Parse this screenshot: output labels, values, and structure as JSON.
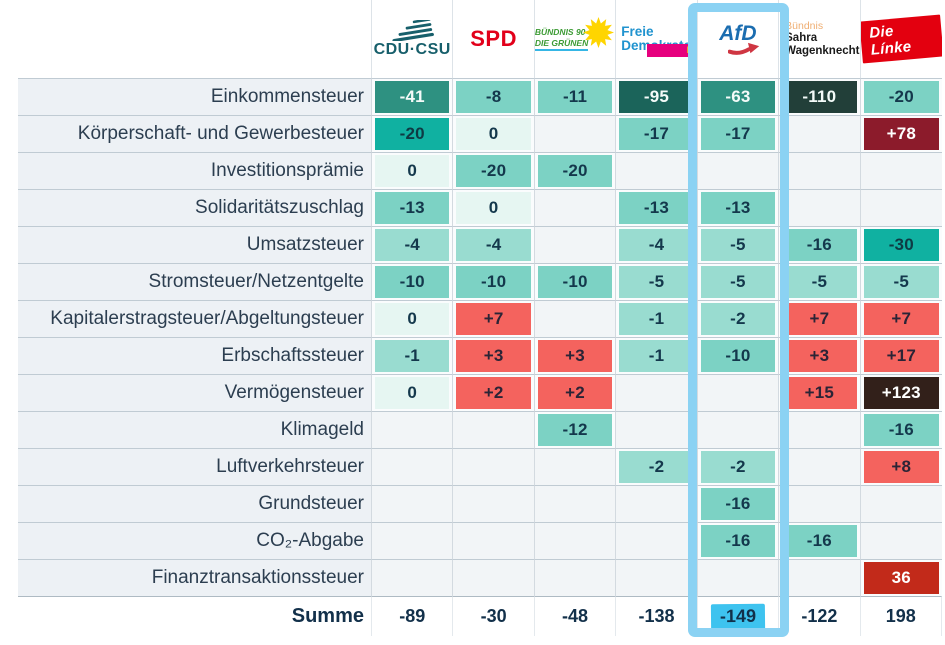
{
  "chart_data": {
    "type": "heatmap",
    "title": "",
    "columns": [
      "CDU·CSU",
      "SPD",
      "BÜNDNIS 90 DIE GRÜNEN",
      "Freie Demokraten (FDP)",
      "AfD",
      "Bündnis Sahra Wagenknecht",
      "Die Línke"
    ],
    "rows": [
      {
        "label": "Einkommensteuer",
        "values": [
          "-41",
          "-8",
          "-11",
          "-95",
          "-63",
          "-110",
          "-20"
        ],
        "shades": [
          "s4",
          "s2",
          "s2",
          "s5",
          "s4",
          "s6",
          "s2"
        ]
      },
      {
        "label": "Körperschaft- und Gewerbesteuer",
        "values": [
          "-20",
          "0",
          "",
          "-17",
          "-17",
          "",
          "+78"
        ],
        "shades": [
          "s3",
          "s0",
          "",
          "s2",
          "s2",
          "",
          "r2"
        ]
      },
      {
        "label": "Investitionsprämie",
        "values": [
          "0",
          "-20",
          "-20",
          "",
          "",
          "",
          ""
        ],
        "shades": [
          "s0",
          "s2",
          "s2",
          "",
          "",
          "",
          ""
        ]
      },
      {
        "label": "Solidaritätszuschlag",
        "values": [
          "-13",
          "0",
          "",
          "-13",
          "-13",
          "",
          ""
        ],
        "shades": [
          "s2",
          "s0",
          "",
          "s2",
          "s2",
          "",
          ""
        ]
      },
      {
        "label": "Umsatzsteuer",
        "values": [
          "-4",
          "-4",
          "",
          "-4",
          "-5",
          "-16",
          "-30"
        ],
        "shades": [
          "s1",
          "s1",
          "",
          "s1",
          "s1",
          "s2",
          "s3"
        ]
      },
      {
        "label": "Stromsteuer/Netzentgelte",
        "values": [
          "-10",
          "-10",
          "-10",
          "-5",
          "-5",
          "-5",
          "-5"
        ],
        "shades": [
          "s2",
          "s2",
          "s2",
          "s1",
          "s1",
          "s1",
          "s1"
        ]
      },
      {
        "label": "Kapitalerstragsteuer/Abgeltungsteuer",
        "values": [
          "0",
          "+7",
          "",
          "-1",
          "-2",
          "+7",
          "+7"
        ],
        "shades": [
          "s0",
          "r1",
          "",
          "s1",
          "s1",
          "r1",
          "r1"
        ]
      },
      {
        "label": "Erbschaftssteuer",
        "values": [
          "-1",
          "+3",
          "+3",
          "-1",
          "-10",
          "+3",
          "+17"
        ],
        "shades": [
          "s1",
          "r1",
          "r1",
          "s1",
          "s2",
          "r1",
          "r1"
        ]
      },
      {
        "label": "Vermögensteuer",
        "values": [
          "0",
          "+2",
          "+2",
          "",
          "",
          "+15",
          "+123"
        ],
        "shades": [
          "s0",
          "r1",
          "r1",
          "",
          "",
          "r1",
          "r4"
        ]
      },
      {
        "label": "Klimageld",
        "values": [
          "",
          "",
          "-12",
          "",
          "",
          "",
          "-16"
        ],
        "shades": [
          "",
          "",
          "s2",
          "",
          "",
          "",
          "s2"
        ]
      },
      {
        "label": "Luftverkehrsteuer",
        "values": [
          "",
          "",
          "",
          "-2",
          "-2",
          "",
          "+8"
        ],
        "shades": [
          "",
          "",
          "",
          "s1",
          "s1",
          "",
          "r1"
        ]
      },
      {
        "label": "Grundsteuer",
        "values": [
          "",
          "",
          "",
          "",
          "-16",
          "",
          ""
        ],
        "shades": [
          "",
          "",
          "",
          "",
          "s2",
          "",
          ""
        ]
      },
      {
        "label": "CO₂-Abgabe",
        "values": [
          "",
          "",
          "",
          "",
          "-16",
          "-16",
          ""
        ],
        "shades": [
          "",
          "",
          "",
          "",
          "s2",
          "s2",
          ""
        ]
      },
      {
        "label": "Finanztransaktionssteuer",
        "values": [
          "",
          "",
          "",
          "",
          "",
          "",
          "36"
        ],
        "shades": [
          "",
          "",
          "",
          "",
          "",
          "",
          "r3"
        ]
      }
    ],
    "sum_row": {
      "label": "Summe",
      "values": [
        "-89",
        "-30",
        "-48",
        "-138",
        "-149",
        "-122",
        "198"
      ]
    },
    "highlight": {
      "party": "AfD",
      "column_index": 4,
      "highlighted_total": "-149",
      "box_color": "#8bd2f3",
      "marker_color": "#3ec3ef",
      "marker_text_color": "#12304a"
    }
  },
  "palette": {
    "s0": {
      "bg": "#e6f6f2",
      "fg": "#14384c"
    },
    "s1": {
      "bg": "#99dcd0",
      "fg": "#14384c"
    },
    "s2": {
      "bg": "#7cd2c4",
      "fg": "#14384c"
    },
    "s3": {
      "bg": "#10b1a1",
      "fg": "#0e3b44"
    },
    "s4": {
      "bg": "#2e9181",
      "fg": "#f4fbf9"
    },
    "s5": {
      "bg": "#1b645a",
      "fg": "#f4fbf9"
    },
    "s6": {
      "bg": "#223f39",
      "fg": "#f4fbf9"
    },
    "r1": {
      "bg": "#f4635e",
      "fg": "#2b2436"
    },
    "r2": {
      "bg": "#8c1b2b",
      "fg": "#ffffff"
    },
    "r3": {
      "bg": "#c22a1a",
      "fg": "#ffffff"
    },
    "r4": {
      "bg": "#32201a",
      "fg": "#ffffff"
    }
  },
  "parties": {
    "cdu": {
      "label": "CDU·CSU",
      "color": "#175f6b"
    },
    "spd": {
      "label": "SPD",
      "color": "#e2001a"
    },
    "gruene": {
      "line1": "BÜNDNIS 90",
      "line2": "DIE GRÜNEN",
      "text_color": "#3d9b35",
      "underline_color": "#35b6e5",
      "flower_color": "#ffd500"
    },
    "fdp": {
      "line1": "Freie",
      "line2": "Demokraten",
      "badge": "FDP",
      "blue": "#2093cf",
      "magenta": "#e6007e",
      "yellow": "#ffe500"
    },
    "afd": {
      "label": "AfD",
      "blue": "#1b6db0",
      "red": "#cf3642"
    },
    "bsw": {
      "line1": "Bündnis",
      "line2": "Sahra",
      "line3": "Wagenknecht",
      "orange": "#efae72",
      "black": "#1a1a1a"
    },
    "linke": {
      "label": "Die Línke",
      "red": "#e3000f"
    }
  }
}
